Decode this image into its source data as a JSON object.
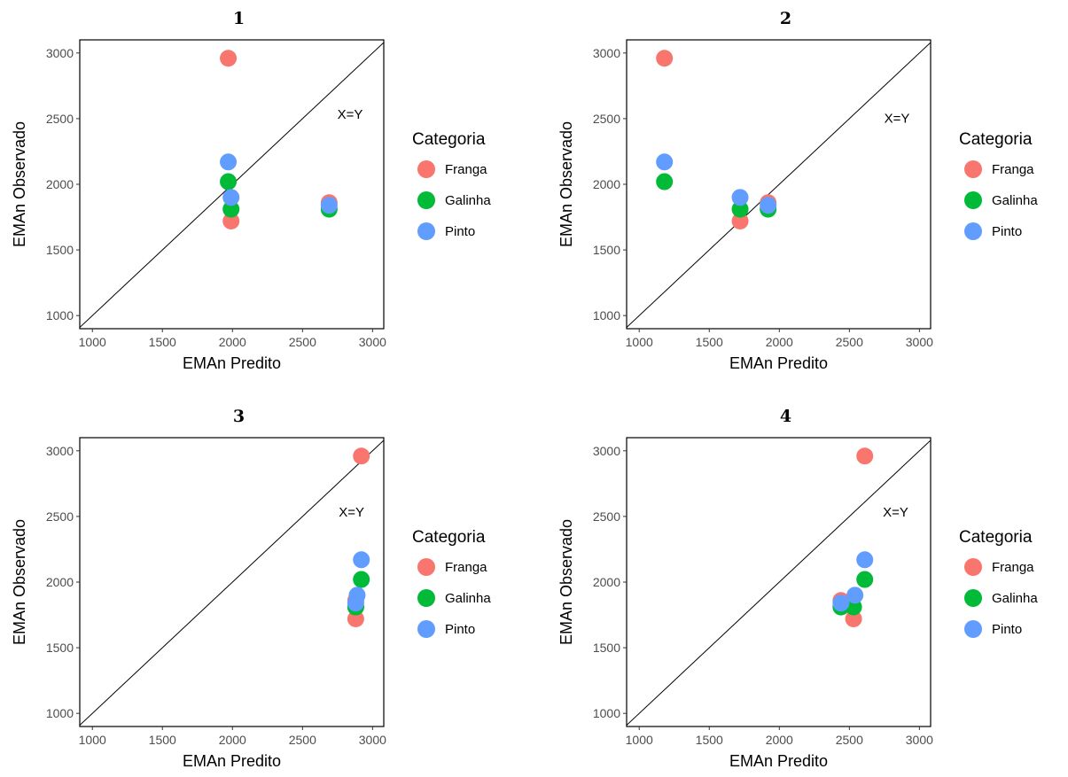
{
  "legend": {
    "title": "Categoria",
    "entries": [
      {
        "name": "Franga",
        "color": "#F8766D"
      },
      {
        "name": "Galinha",
        "color": "#00BA38"
      },
      {
        "name": "Pinto",
        "color": "#619CFF"
      }
    ]
  },
  "chart_data": [
    {
      "type": "scatter",
      "title": "1",
      "xlabel": "EMAn Predito",
      "ylabel": "EMAn Observado",
      "xlim": [
        910,
        3080
      ],
      "ylim": [
        900,
        3100
      ],
      "xticks": [
        1000,
        1500,
        2000,
        2500,
        3000
      ],
      "yticks": [
        1000,
        1500,
        2000,
        2500,
        3000
      ],
      "annotation": {
        "text": "X=Y",
        "x": 2840,
        "y": 2500
      },
      "reference_line": "y = x",
      "legend_position": "right",
      "series": [
        {
          "name": "Franga",
          "color": "#F8766D",
          "points": [
            [
              1970,
              2960
            ],
            [
              1990,
              1720
            ],
            [
              2690,
              1860
            ]
          ]
        },
        {
          "name": "Galinha",
          "color": "#00BA38",
          "points": [
            [
              1970,
              2020
            ],
            [
              1990,
              1810
            ],
            [
              2690,
              1810
            ]
          ]
        },
        {
          "name": "Pinto",
          "color": "#619CFF",
          "points": [
            [
              1970,
              2170
            ],
            [
              1990,
              1900
            ],
            [
              2690,
              1840
            ]
          ]
        }
      ]
    },
    {
      "type": "scatter",
      "title": "2",
      "xlabel": "EMAn Predito",
      "ylabel": "EMAn Observado",
      "xlim": [
        910,
        3080
      ],
      "ylim": [
        900,
        3100
      ],
      "xticks": [
        1000,
        1500,
        2000,
        2500,
        3000
      ],
      "yticks": [
        1000,
        1500,
        2000,
        2500,
        3000
      ],
      "annotation": {
        "text": "X=Y",
        "x": 2840,
        "y": 2470
      },
      "reference_line": "y = x",
      "legend_position": "right",
      "series": [
        {
          "name": "Franga",
          "color": "#F8766D",
          "points": [
            [
              1180,
              2960
            ],
            [
              1720,
              1720
            ],
            [
              1920,
              1860
            ]
          ]
        },
        {
          "name": "Galinha",
          "color": "#00BA38",
          "points": [
            [
              1180,
              2020
            ],
            [
              1720,
              1810
            ],
            [
              1920,
              1810
            ]
          ]
        },
        {
          "name": "Pinto",
          "color": "#619CFF",
          "points": [
            [
              1180,
              2170
            ],
            [
              1720,
              1900
            ],
            [
              1920,
              1840
            ]
          ]
        }
      ]
    },
    {
      "type": "scatter",
      "title": "3",
      "xlabel": "EMAn Predito",
      "ylabel": "EMAn Observado",
      "xlim": [
        910,
        3080
      ],
      "ylim": [
        900,
        3100
      ],
      "xticks": [
        1000,
        1500,
        2000,
        2500,
        3000
      ],
      "yticks": [
        1000,
        1500,
        2000,
        2500,
        3000
      ],
      "annotation": {
        "text": "X=Y",
        "x": 2850,
        "y": 2500
      },
      "reference_line": "y = x",
      "legend_position": "right",
      "series": [
        {
          "name": "Franga",
          "color": "#F8766D",
          "points": [
            [
              2920,
              2960
            ],
            [
              2880,
              1720
            ],
            [
              2880,
              1860
            ]
          ]
        },
        {
          "name": "Galinha",
          "color": "#00BA38",
          "points": [
            [
              2920,
              2020
            ],
            [
              2880,
              1810
            ],
            [
              2880,
              1810
            ]
          ]
        },
        {
          "name": "Pinto",
          "color": "#619CFF",
          "points": [
            [
              2920,
              2170
            ],
            [
              2890,
              1900
            ],
            [
              2880,
              1840
            ]
          ]
        }
      ]
    },
    {
      "type": "scatter",
      "title": "4",
      "xlabel": "EMAn Predito",
      "ylabel": "EMAn Observado",
      "xlim": [
        910,
        3080
      ],
      "ylim": [
        900,
        3100
      ],
      "xticks": [
        1000,
        1500,
        2000,
        2500,
        3000
      ],
      "yticks": [
        1000,
        1500,
        2000,
        2500,
        3000
      ],
      "annotation": {
        "text": "X=Y",
        "x": 2830,
        "y": 2500
      },
      "reference_line": "y = x",
      "legend_position": "right",
      "series": [
        {
          "name": "Franga",
          "color": "#F8766D",
          "points": [
            [
              2610,
              2960
            ],
            [
              2530,
              1720
            ],
            [
              2440,
              1860
            ]
          ]
        },
        {
          "name": "Galinha",
          "color": "#00BA38",
          "points": [
            [
              2610,
              2020
            ],
            [
              2530,
              1810
            ],
            [
              2440,
              1810
            ]
          ]
        },
        {
          "name": "Pinto",
          "color": "#619CFF",
          "points": [
            [
              2610,
              2170
            ],
            [
              2540,
              1900
            ],
            [
              2440,
              1840
            ]
          ]
        }
      ]
    }
  ]
}
